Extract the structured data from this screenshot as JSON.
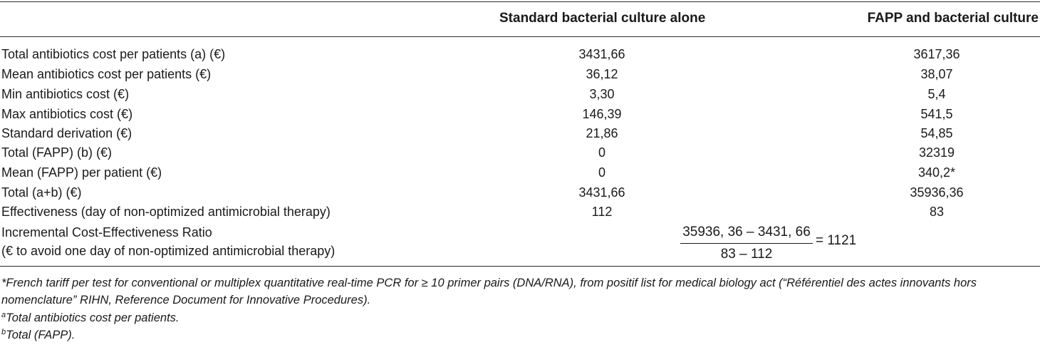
{
  "header": {
    "col1": "Standard bacterial culture alone",
    "col2": "FAPP and bacterial culture"
  },
  "rows": [
    {
      "label": "Total antibiotics cost per patients (a) (€)",
      "c1": "3431,66",
      "c2": "3617,36"
    },
    {
      "label": "Mean antibiotics cost per patients (€)",
      "c1": "36,12",
      "c2": "38,07"
    },
    {
      "label": "Min antibiotics cost (€)",
      "c1": "3,30",
      "c2": "5,4"
    },
    {
      "label": "Max antibiotics cost (€)",
      "c1": "146,39",
      "c2": "541,5"
    },
    {
      "label": "Standard derivation (€)",
      "c1": "21,86",
      "c2": "54,85"
    },
    {
      "label": "Total (FAPP) (b) (€)",
      "c1": "0",
      "c2": "32319"
    },
    {
      "label": "Mean (FAPP) per patient (€)",
      "c1": "0",
      "c2": "340,2*"
    },
    {
      "label": "Total (a+b) (€)",
      "c1": "3431,66",
      "c2": "35936,36"
    },
    {
      "label": "Effectiveness (day of non-optimized antimicrobial therapy)",
      "c1": "112",
      "c2": "83"
    }
  ],
  "icer": {
    "label_line1": "Incremental Cost-Effectiveness Ratio",
    "label_line2": "(€ to avoid one day of non-optimized antimicrobial therapy)",
    "numerator": "35936, 36 – 3431, 66",
    "denominator": "83 – 112",
    "result": "= 1121"
  },
  "footnotes": {
    "star_line1": "*French tariff per test for conventional or multiplex quantitative real-time PCR for ≥ 10 primer pairs (DNA/RNA), from positif list for medical biology act (“Référentiel des actes innovants hors",
    "star_line2": "nomenclature” RIHN, Reference Document for Innovative Procedures).",
    "a_mark": "a",
    "a_text": "Total antibiotics cost per patients.",
    "b_mark": "b",
    "b_text": "Total (FAPP)."
  }
}
